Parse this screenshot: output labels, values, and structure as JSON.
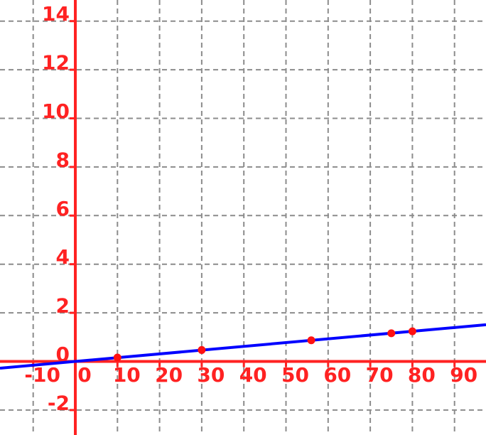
{
  "chart_data": {
    "type": "scatter",
    "title": "",
    "xlabel": "",
    "ylabel": "",
    "x_ticks": [
      -10,
      0,
      10,
      20,
      30,
      40,
      50,
      60,
      70,
      80,
      90
    ],
    "y_ticks": [
      -2,
      0,
      2,
      4,
      6,
      8,
      10,
      12,
      14
    ],
    "xlim": [
      -17.9,
      97.5
    ],
    "ylim": [
      -3.0,
      14.9
    ],
    "grid": {
      "style": "dashed",
      "color": "#8c8c8c"
    },
    "points": [
      {
        "x": 10,
        "y": 0.16
      },
      {
        "x": 30,
        "y": 0.47
      },
      {
        "x": 56,
        "y": 0.87
      },
      {
        "x": 75,
        "y": 1.16
      },
      {
        "x": 80,
        "y": 1.24
      }
    ],
    "fit_line": {
      "slope": 0.0155,
      "intercept": 0
    },
    "colors": {
      "axis": "#ff2222",
      "tick_label": "#ff2222",
      "line": "#0202ff",
      "point": "#ff1111",
      "background": "#ffffff"
    }
  }
}
